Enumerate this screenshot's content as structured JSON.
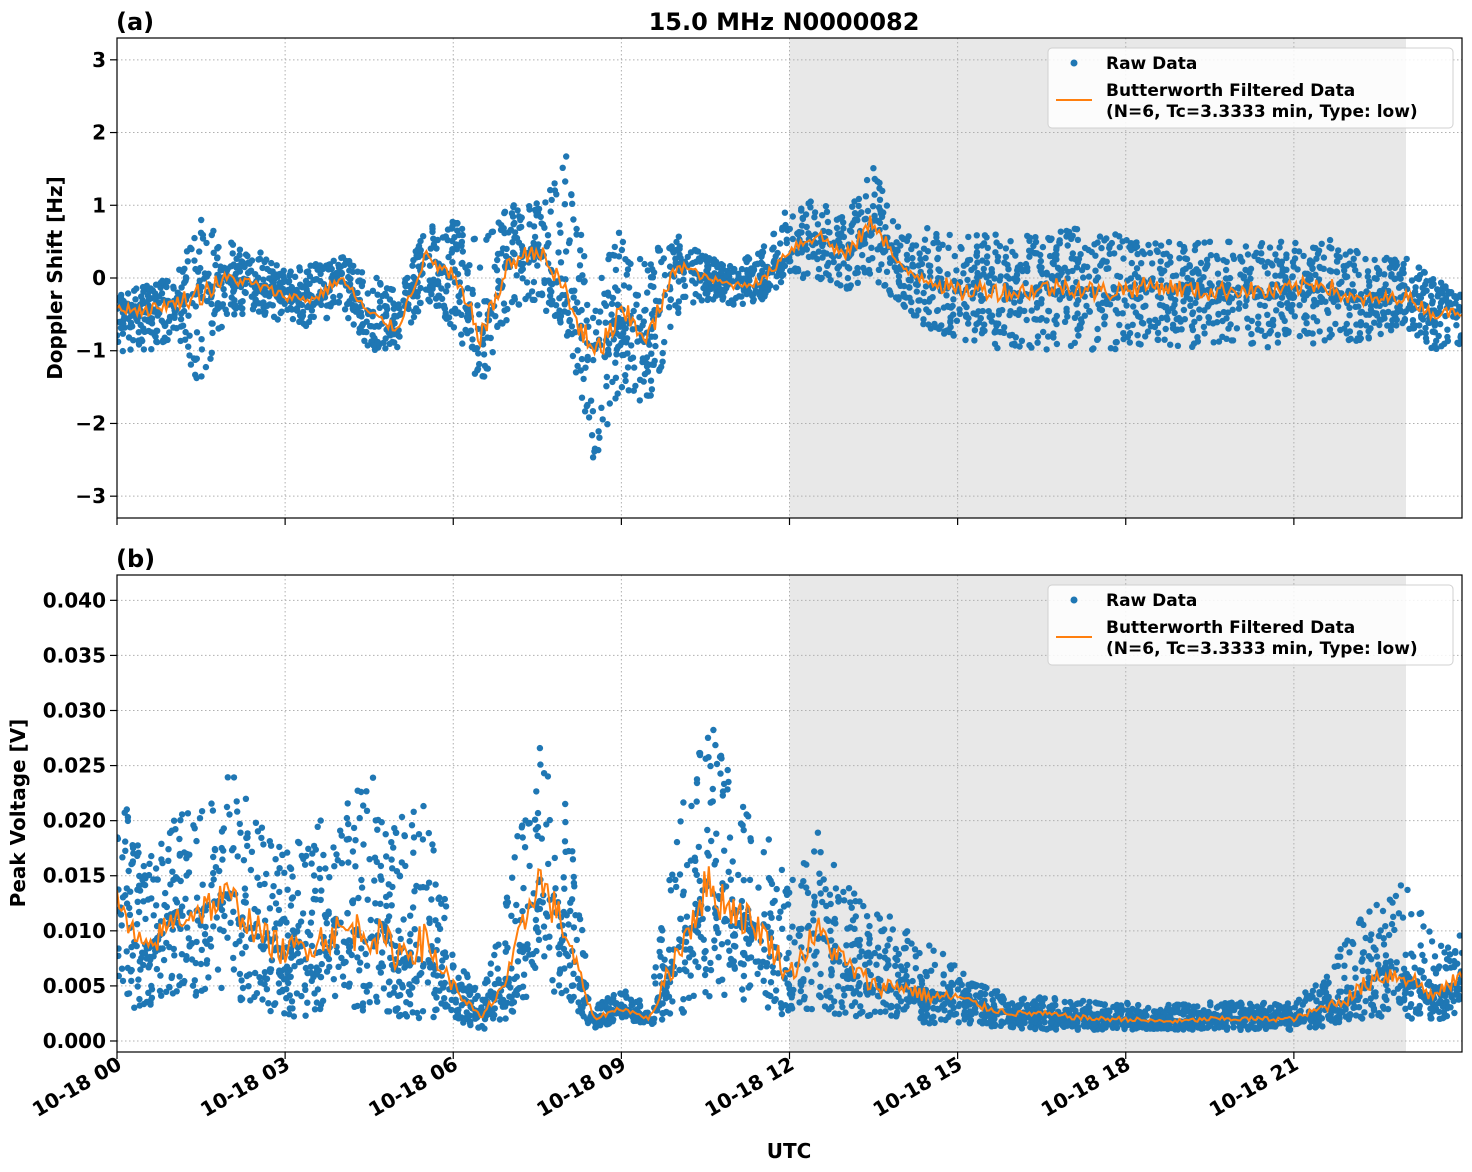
{
  "title": "15.0 MHz N0000082",
  "colors": {
    "raw": "#1f77b4",
    "filtered": "#ff7f0e",
    "shade": "#e8e8e8"
  },
  "legend": {
    "raw": "Raw Data",
    "filtered_line1": "Butterworth Filtered Data",
    "filtered_line2": "(N=6, Tc=3.3333 min, Type: low)",
    "placement": "top-right"
  },
  "xlabel": "UTC",
  "xticks": [
    "10-18 00",
    "10-18 03",
    "10-18 06",
    "10-18 09",
    "10-18 12",
    "10-18 15",
    "10-18 18",
    "10-18 21"
  ],
  "chart_data": [
    {
      "type": "scatter",
      "panel_label": "(a)",
      "ylabel": "Doppler Shift [Hz]",
      "xlim_hours": [
        0,
        24
      ],
      "ylim": [
        -3.3,
        3.3
      ],
      "yticks": [
        "3",
        "2",
        "1",
        "0",
        "−1",
        "−2",
        "−3"
      ],
      "ytick_values": [
        3,
        2,
        1,
        0,
        -1,
        -2,
        -3
      ],
      "grid": true,
      "shaded_interval_hours": [
        12,
        23
      ],
      "x_hours": [
        0,
        0.5,
        1,
        1.5,
        2,
        2.5,
        3,
        3.5,
        4,
        4.5,
        5,
        5.5,
        6,
        6.5,
        7,
        7.5,
        8,
        8.5,
        9,
        9.5,
        10,
        10.5,
        11,
        11.5,
        12,
        12.5,
        13,
        13.5,
        14,
        14.5,
        15,
        15.5,
        16,
        16.5,
        17,
        17.5,
        18,
        18.5,
        19,
        19.5,
        20,
        20.5,
        21,
        21.5,
        22,
        22.5,
        23,
        23.5,
        24
      ],
      "series": [
        {
          "name": "Butterworth Filtered Data",
          "values": [
            -0.4,
            -0.45,
            -0.35,
            -0.2,
            0.0,
            -0.1,
            -0.25,
            -0.3,
            0.0,
            -0.5,
            -0.7,
            0.3,
            0.0,
            -0.8,
            0.2,
            0.4,
            -0.2,
            -1.1,
            -0.5,
            -0.8,
            0.2,
            0.0,
            -0.1,
            -0.05,
            0.4,
            0.6,
            0.3,
            0.8,
            0.1,
            0.0,
            -0.2,
            -0.15,
            -0.2,
            -0.15,
            -0.1,
            -0.2,
            -0.15,
            -0.1,
            -0.15,
            -0.2,
            -0.15,
            -0.2,
            -0.15,
            -0.05,
            -0.3,
            -0.3,
            -0.25,
            -0.5,
            -0.45
          ]
        },
        {
          "name": "Raw Data",
          "low": [
            -1.0,
            -1.1,
            -0.8,
            -1.5,
            -0.5,
            -0.5,
            -0.6,
            -0.7,
            -0.4,
            -1.0,
            -1.0,
            -0.3,
            -0.7,
            -1.5,
            -0.5,
            -0.3,
            -0.8,
            -2.6,
            -1.5,
            -1.8,
            -0.5,
            -0.3,
            -0.4,
            -0.3,
            0.0,
            0.0,
            -0.2,
            0.0,
            -0.4,
            -0.7,
            -0.9,
            -1.0,
            -1.0,
            -1.0,
            -1.0,
            -1.0,
            -1.0,
            -0.9,
            -1.0,
            -0.9,
            -0.9,
            -1.0,
            -0.9,
            -0.9,
            -0.9,
            -0.8,
            -0.7,
            -1.0,
            -0.9
          ],
          "high": [
            -0.2,
            -0.1,
            0.0,
            0.8,
            0.5,
            0.4,
            0.1,
            0.2,
            0.3,
            0.1,
            -0.2,
            0.7,
            0.8,
            0.5,
            1.0,
            1.1,
            1.8,
            -0.2,
            0.7,
            0.4,
            0.6,
            0.3,
            0.2,
            0.4,
            1.0,
            1.2,
            0.8,
            1.6,
            0.6,
            0.7,
            0.6,
            0.6,
            0.6,
            0.6,
            0.7,
            0.6,
            0.6,
            0.5,
            0.5,
            0.5,
            0.5,
            0.5,
            0.5,
            0.6,
            0.4,
            0.3,
            0.3,
            0.0,
            -0.2
          ]
        }
      ]
    },
    {
      "type": "scatter",
      "panel_label": "(b)",
      "ylabel": "Peak Voltage [V]",
      "xlim_hours": [
        0,
        24
      ],
      "ylim": [
        -0.001,
        0.0423
      ],
      "yticks": [
        "0.040",
        "0.035",
        "0.030",
        "0.025",
        "0.020",
        "0.015",
        "0.010",
        "0.005",
        "0.000"
      ],
      "ytick_values": [
        0.04,
        0.035,
        0.03,
        0.025,
        0.02,
        0.015,
        0.01,
        0.005,
        0.0
      ],
      "grid": true,
      "shaded_interval_hours": [
        12,
        23
      ],
      "x_hours": [
        0,
        0.5,
        1,
        1.5,
        2,
        2.5,
        3,
        3.5,
        4,
        4.5,
        5,
        5.5,
        6,
        6.5,
        7,
        7.5,
        8,
        8.5,
        9,
        9.5,
        10,
        10.5,
        11,
        11.5,
        12,
        12.5,
        13,
        13.5,
        14,
        14.5,
        15,
        15.5,
        16,
        16.5,
        17,
        17.5,
        18,
        18.5,
        19,
        19.5,
        20,
        20.5,
        21,
        21.5,
        22,
        22.5,
        23,
        23.5,
        24
      ],
      "series": [
        {
          "name": "Butterworth Filtered Data",
          "values": [
            0.012,
            0.008,
            0.011,
            0.012,
            0.013,
            0.01,
            0.008,
            0.009,
            0.01,
            0.01,
            0.008,
            0.009,
            0.005,
            0.002,
            0.006,
            0.015,
            0.01,
            0.002,
            0.003,
            0.002,
            0.008,
            0.014,
            0.012,
            0.01,
            0.006,
            0.01,
            0.007,
            0.005,
            0.005,
            0.004,
            0.004,
            0.003,
            0.0025,
            0.0025,
            0.0022,
            0.002,
            0.002,
            0.0018,
            0.0018,
            0.002,
            0.002,
            0.002,
            0.002,
            0.003,
            0.004,
            0.006,
            0.006,
            0.004,
            0.006
          ]
        },
        {
          "name": "Raw Data",
          "low": [
            0.003,
            0.003,
            0.004,
            0.004,
            0.004,
            0.003,
            0.002,
            0.002,
            0.002,
            0.003,
            0.002,
            0.002,
            0.002,
            0.001,
            0.002,
            0.005,
            0.004,
            0.001,
            0.002,
            0.0015,
            0.002,
            0.004,
            0.004,
            0.003,
            0.002,
            0.003,
            0.002,
            0.002,
            0.002,
            0.0015,
            0.0015,
            0.0012,
            0.001,
            0.001,
            0.001,
            0.001,
            0.001,
            0.001,
            0.001,
            0.001,
            0.001,
            0.001,
            0.001,
            0.0012,
            0.002,
            0.002,
            0.002,
            0.002,
            0.002
          ],
          "high": [
            0.025,
            0.016,
            0.02,
            0.022,
            0.025,
            0.02,
            0.017,
            0.02,
            0.022,
            0.025,
            0.02,
            0.022,
            0.009,
            0.004,
            0.015,
            0.028,
            0.022,
            0.003,
            0.005,
            0.003,
            0.02,
            0.03,
            0.024,
            0.02,
            0.015,
            0.02,
            0.015,
            0.012,
            0.011,
            0.009,
            0.007,
            0.005,
            0.004,
            0.004,
            0.0038,
            0.0035,
            0.0035,
            0.0033,
            0.0033,
            0.0035,
            0.0035,
            0.0035,
            0.0035,
            0.006,
            0.01,
            0.013,
            0.015,
            0.009,
            0.01
          ]
        }
      ]
    }
  ]
}
